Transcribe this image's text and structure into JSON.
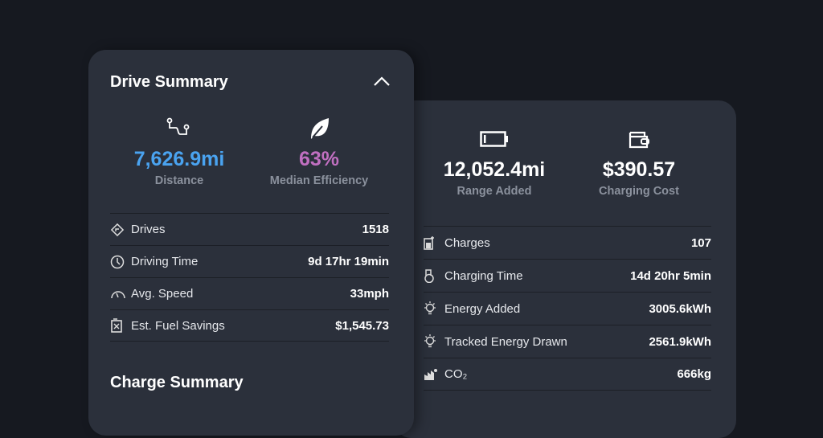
{
  "drive_summary": {
    "title": "Drive Summary",
    "stats": [
      {
        "icon": "route-icon",
        "value": "7,626.9mi",
        "label": "Distance",
        "color": "#4aa3f0"
      },
      {
        "icon": "leaf-icon",
        "value": "63%",
        "label": "Median Efficiency",
        "color": "#c06fc0"
      }
    ],
    "rows": [
      {
        "icon": "directions-icon",
        "label": "Drives",
        "value": "1518"
      },
      {
        "icon": "clock-icon",
        "label": "Driving Time",
        "value": "9d 17hr 19min"
      },
      {
        "icon": "speedometer-icon",
        "label": "Avg. Speed",
        "value": "33mph"
      },
      {
        "icon": "fuel-can-icon",
        "label": "Est. Fuel Savings",
        "value": "$1,545.73"
      }
    ]
  },
  "charge_summary": {
    "title": "Charge Summary",
    "stats": [
      {
        "icon": "battery-icon",
        "value": "12,052.4mi",
        "label": "Range Added"
      },
      {
        "icon": "wallet-icon",
        "value": "$390.57",
        "label": "Charging Cost"
      }
    ],
    "rows": [
      {
        "icon": "charger-icon",
        "label": "Charges",
        "value": "107"
      },
      {
        "icon": "charging-time-icon",
        "label": "Charging Time",
        "value": "14d 20hr 5min"
      },
      {
        "icon": "lightbulb-icon",
        "label": "Energy Added",
        "value": "3005.6kWh"
      },
      {
        "icon": "lightbulb-icon",
        "label": "Tracked Energy Drawn",
        "value": "2561.9kWh"
      },
      {
        "icon": "factory-icon",
        "label": "CO₂",
        "value": "666kg"
      }
    ]
  }
}
